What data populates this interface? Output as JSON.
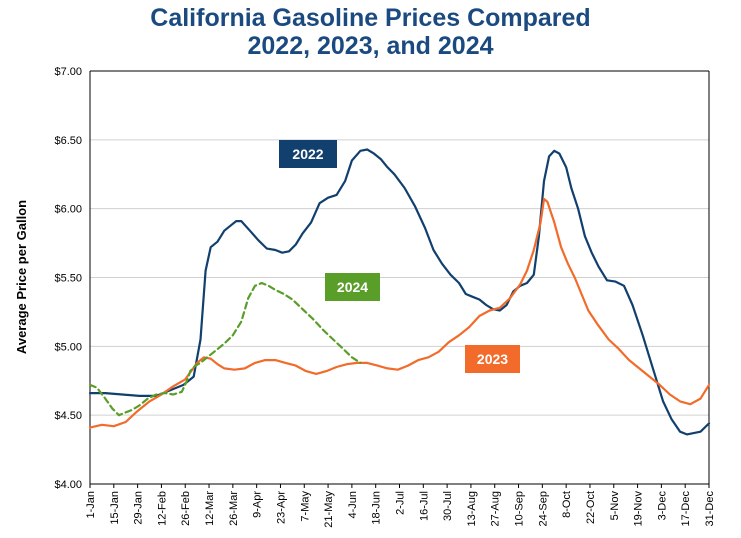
{
  "chart_data": {
    "type": "line",
    "title_line1": "California Gasoline Prices Compared",
    "title_line2": "2022, 2023, and 2024",
    "ylabel": "Average Price per Gallon",
    "ylim": [
      4.0,
      7.0
    ],
    "yticks": [
      4.0,
      4.5,
      5.0,
      5.5,
      6.0,
      6.5,
      7.0
    ],
    "ytick_labels": [
      "$4.00",
      "$4.50",
      "$5.00",
      "$5.50",
      "$6.00",
      "$6.50",
      "$7.00"
    ],
    "xlim": [
      1,
      365
    ],
    "xtick_days": [
      1,
      15,
      29,
      43,
      57,
      71,
      85,
      99,
      113,
      127,
      141,
      155,
      169,
      183,
      197,
      211,
      225,
      239,
      253,
      267,
      281,
      295,
      309,
      323,
      337,
      351,
      365
    ],
    "xtick_labels": [
      "1-Jan",
      "15-Jan",
      "29-Jan",
      "12-Feb",
      "26-Feb",
      "12-Mar",
      "26-Mar",
      "9-Apr",
      "23-Apr",
      "7-May",
      "21-May",
      "4-Jun",
      "18-Jun",
      "2-Jul",
      "16-Jul",
      "30-Jul",
      "13-Aug",
      "27-Aug",
      "10-Sep",
      "24-Sep",
      "8-Oct",
      "22-Oct",
      "5-Nov",
      "19-Nov",
      "3-Dec",
      "17-Dec",
      "31-Dec"
    ],
    "series": [
      {
        "name": "2022",
        "color": "#12406e",
        "dash": "solid",
        "x": [
          1,
          10,
          20,
          30,
          40,
          50,
          56,
          62,
          66,
          69,
          72,
          76,
          80,
          84,
          87,
          90,
          95,
          100,
          105,
          110,
          114,
          118,
          122,
          126,
          131,
          136,
          141,
          146,
          151,
          155,
          160,
          164,
          168,
          172,
          176,
          180,
          186,
          192,
          198,
          203,
          208,
          213,
          218,
          222,
          226,
          230,
          234,
          238,
          242,
          246,
          250,
          254,
          258,
          262,
          265,
          268,
          271,
          274,
          277,
          281,
          284,
          288,
          292,
          296,
          300,
          305,
          310,
          315,
          320,
          326,
          332,
          338,
          343,
          348,
          352,
          356,
          360,
          365
        ],
        "y": [
          4.66,
          4.66,
          4.65,
          4.64,
          4.64,
          4.69,
          4.72,
          4.78,
          5.05,
          5.55,
          5.72,
          5.76,
          5.84,
          5.88,
          5.91,
          5.91,
          5.84,
          5.77,
          5.71,
          5.7,
          5.68,
          5.69,
          5.74,
          5.82,
          5.9,
          6.04,
          6.08,
          6.1,
          6.2,
          6.35,
          6.42,
          6.43,
          6.4,
          6.36,
          6.3,
          6.25,
          6.15,
          6.02,
          5.86,
          5.7,
          5.6,
          5.52,
          5.46,
          5.38,
          5.36,
          5.34,
          5.3,
          5.27,
          5.26,
          5.3,
          5.4,
          5.44,
          5.46,
          5.52,
          5.8,
          6.2,
          6.38,
          6.42,
          6.4,
          6.3,
          6.15,
          6.0,
          5.8,
          5.68,
          5.58,
          5.48,
          5.47,
          5.44,
          5.3,
          5.08,
          4.84,
          4.6,
          4.47,
          4.38,
          4.36,
          4.37,
          4.38,
          4.44
        ]
      },
      {
        "name": "2023",
        "color": "#f26b2a",
        "dash": "solid",
        "x": [
          1,
          8,
          15,
          22,
          29,
          36,
          43,
          50,
          57,
          64,
          68,
          72,
          76,
          80,
          86,
          92,
          98,
          104,
          110,
          116,
          122,
          128,
          134,
          140,
          146,
          152,
          158,
          164,
          170,
          176,
          182,
          188,
          194,
          200,
          206,
          212,
          218,
          224,
          230,
          236,
          242,
          248,
          254,
          258,
          262,
          264,
          266,
          268,
          270,
          274,
          278,
          282,
          286,
          290,
          294,
          300,
          306,
          312,
          318,
          324,
          330,
          336,
          342,
          348,
          354,
          360,
          365
        ],
        "y": [
          4.41,
          4.43,
          4.42,
          4.45,
          4.53,
          4.6,
          4.65,
          4.71,
          4.76,
          4.88,
          4.92,
          4.91,
          4.87,
          4.84,
          4.83,
          4.84,
          4.88,
          4.9,
          4.9,
          4.88,
          4.86,
          4.82,
          4.8,
          4.82,
          4.85,
          4.87,
          4.88,
          4.88,
          4.86,
          4.84,
          4.83,
          4.86,
          4.9,
          4.92,
          4.96,
          5.03,
          5.08,
          5.14,
          5.22,
          5.26,
          5.28,
          5.35,
          5.45,
          5.55,
          5.7,
          5.8,
          5.9,
          6.07,
          6.05,
          5.9,
          5.72,
          5.6,
          5.5,
          5.38,
          5.26,
          5.15,
          5.05,
          4.98,
          4.9,
          4.84,
          4.78,
          4.72,
          4.65,
          4.6,
          4.58,
          4.62,
          4.72
        ]
      },
      {
        "name": "2024",
        "color": "#5a9e2a",
        "dash": "dashed",
        "x": [
          1,
          5,
          10,
          14,
          18,
          22,
          26,
          30,
          35,
          40,
          45,
          50,
          55,
          58,
          60,
          63,
          66,
          70,
          75,
          80,
          85,
          90,
          94,
          98,
          102,
          106,
          110,
          115,
          120,
          126,
          132,
          138,
          144,
          150,
          155,
          160
        ],
        "y": [
          4.72,
          4.7,
          4.62,
          4.55,
          4.5,
          4.52,
          4.54,
          4.57,
          4.62,
          4.65,
          4.66,
          4.65,
          4.67,
          4.75,
          4.82,
          4.86,
          4.88,
          4.92,
          4.97,
          5.02,
          5.08,
          5.18,
          5.35,
          5.44,
          5.46,
          5.44,
          5.41,
          5.38,
          5.34,
          5.27,
          5.2,
          5.12,
          5.05,
          4.98,
          4.92,
          4.88
        ]
      }
    ],
    "series_labels": [
      {
        "text": "2022",
        "bg": "#12406e"
      },
      {
        "text": "2024",
        "bg": "#5a9e2a"
      },
      {
        "text": "2023",
        "bg": "#f26b2a"
      }
    ]
  }
}
